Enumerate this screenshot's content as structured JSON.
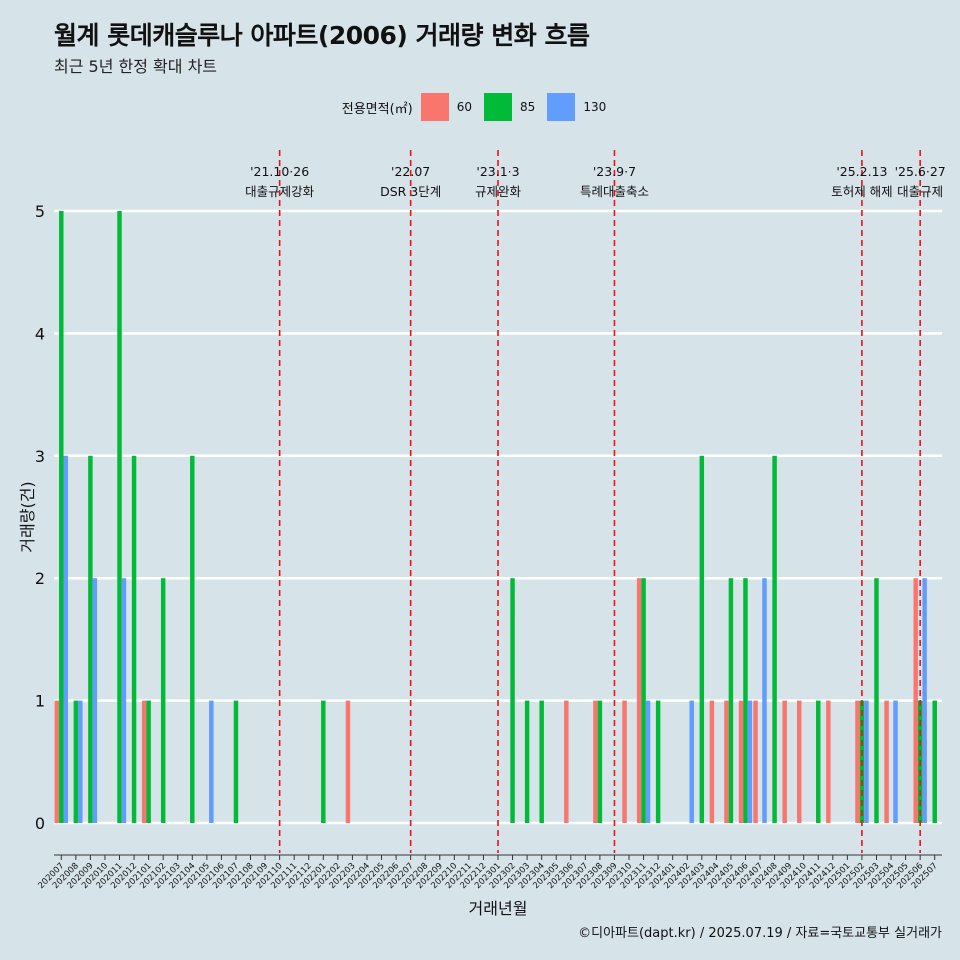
{
  "title": "월계 롯데캐슬루나 아파트(2006) 거래량 변화 흐름",
  "subtitle": "최근 5년 한정 확대 차트",
  "caption": "©디아파트(dapt.kr) / 2025.07.19 / 자료=국토교통부 실거래가",
  "legend": {
    "title": "전용면적(㎡)",
    "items": [
      {
        "label": "60",
        "color": "#f8766d"
      },
      {
        "label": "85",
        "color": "#00ba38"
      },
      {
        "label": "130",
        "color": "#619cff"
      }
    ]
  },
  "chart_data": {
    "type": "bar",
    "xlabel": "거래년월",
    "ylabel": "거래량(건)",
    "ylim": [
      0,
      5
    ],
    "yticks": [
      0,
      1,
      2,
      3,
      4,
      5
    ],
    "grid": true,
    "legend_position": "top",
    "categories": [
      "202007",
      "202008",
      "202009",
      "202010",
      "202011",
      "202012",
      "202101",
      "202102",
      "202103",
      "202104",
      "202105",
      "202106",
      "202107",
      "202108",
      "202109",
      "202110",
      "202111",
      "202112",
      "202201",
      "202202",
      "202203",
      "202204",
      "202205",
      "202206",
      "202207",
      "202208",
      "202209",
      "202210",
      "202211",
      "202212",
      "202301",
      "202302",
      "202303",
      "202304",
      "202305",
      "202306",
      "202307",
      "202308",
      "202309",
      "202310",
      "202311",
      "202312",
      "202401",
      "202402",
      "202403",
      "202404",
      "202405",
      "202406",
      "202407",
      "202408",
      "202409",
      "202410",
      "202411",
      "202412",
      "202501",
      "202502",
      "202503",
      "202504",
      "202505",
      "202506",
      "202507"
    ],
    "series": [
      {
        "name": "60",
        "color": "#f8766d",
        "values": [
          1,
          0,
          0,
          0,
          0,
          0,
          1,
          0,
          0,
          0,
          0,
          0,
          0,
          0,
          0,
          0,
          0,
          0,
          0,
          0,
          1,
          0,
          0,
          0,
          0,
          0,
          0,
          0,
          0,
          0,
          0,
          0,
          0,
          0,
          0,
          1,
          0,
          1,
          0,
          1,
          2,
          0,
          0,
          0,
          0,
          1,
          1,
          1,
          1,
          0,
          1,
          1,
          0,
          1,
          0,
          1,
          0,
          1,
          0,
          2,
          0
        ]
      },
      {
        "name": "85",
        "color": "#00ba38",
        "values": [
          5,
          1,
          3,
          0,
          5,
          3,
          1,
          2,
          0,
          3,
          0,
          0,
          1,
          0,
          0,
          0,
          0,
          0,
          1,
          0,
          0,
          0,
          0,
          0,
          0,
          0,
          0,
          0,
          0,
          0,
          0,
          2,
          1,
          1,
          0,
          0,
          0,
          1,
          0,
          0,
          2,
          1,
          0,
          0,
          3,
          0,
          2,
          2,
          0,
          3,
          0,
          0,
          1,
          0,
          0,
          1,
          2,
          0,
          0,
          1,
          1
        ]
      },
      {
        "name": "130",
        "color": "#619cff",
        "values": [
          3,
          1,
          2,
          0,
          2,
          0,
          0,
          0,
          0,
          0,
          1,
          0,
          0,
          0,
          0,
          0,
          0,
          0,
          0,
          0,
          0,
          0,
          0,
          0,
          0,
          0,
          0,
          0,
          0,
          0,
          0,
          0,
          0,
          0,
          0,
          0,
          0,
          0,
          0,
          0,
          1,
          0,
          0,
          1,
          0,
          0,
          0,
          1,
          2,
          0,
          0,
          0,
          0,
          0,
          0,
          1,
          0,
          1,
          0,
          2,
          0
        ]
      }
    ],
    "annotations": [
      {
        "at": "202110",
        "date": "'21.10·26",
        "label": "대출규제강화"
      },
      {
        "at": "202207",
        "date": "'22.07",
        "label": "DSR 3단계"
      },
      {
        "at": "202301",
        "date": "'23.1·3",
        "label": "규제완화"
      },
      {
        "at": "202309",
        "date": "'23.9·7",
        "label": "특례대출축소"
      },
      {
        "at": "202502",
        "date": "'25.2.13",
        "label": "토허제 해제"
      },
      {
        "at": "202506",
        "date": "'25.6·27",
        "label": "대출규제"
      }
    ]
  }
}
